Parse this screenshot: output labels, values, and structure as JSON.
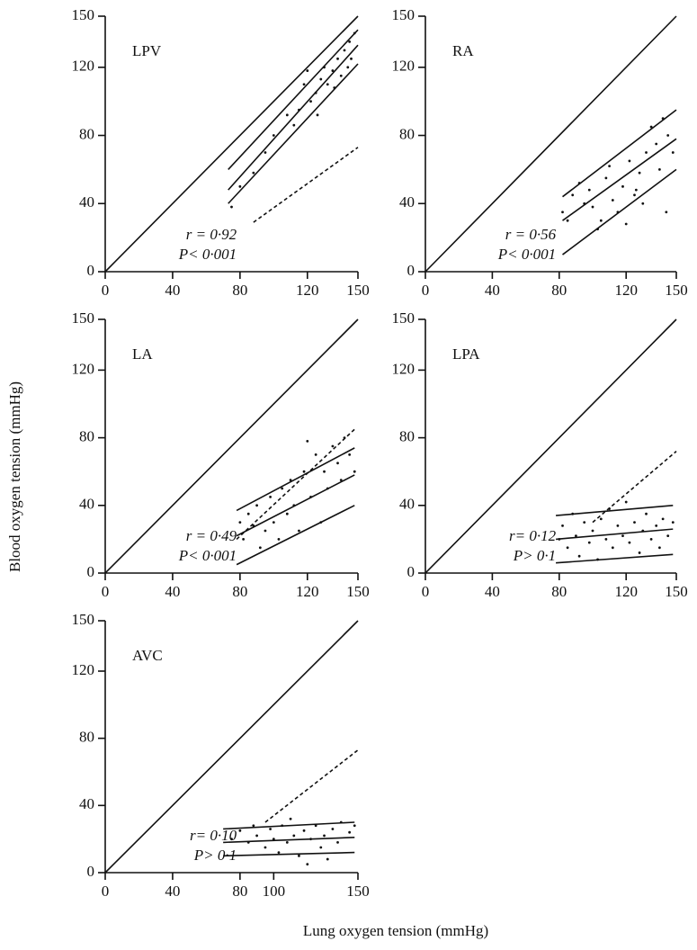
{
  "x_label": "Lung oxygen tension (mmHg)",
  "y_label": "Blood oxygen tension (mmHg)",
  "chart_data": [
    {
      "type": "scatter",
      "label": "LPV",
      "annotations": [
        "r = 0·92",
        "P< 0·001"
      ],
      "color": "#111",
      "xlim": [
        0,
        150
      ],
      "ylim": [
        0,
        150
      ],
      "xticks": [
        0,
        40,
        80,
        120,
        150
      ],
      "yticks": [
        0,
        40,
        80,
        120,
        150
      ],
      "x": [
        75,
        80,
        88,
        95,
        100,
        108,
        112,
        115,
        118,
        120,
        122,
        125,
        128,
        130,
        132,
        135,
        138,
        140,
        142,
        144,
        145,
        146,
        148,
        136,
        126
      ],
      "y": [
        38,
        50,
        58,
        70,
        80,
        92,
        86,
        95,
        110,
        118,
        100,
        105,
        113,
        120,
        110,
        118,
        125,
        115,
        130,
        120,
        135,
        125,
        140,
        108,
        92
      ],
      "lines": [
        {
          "style": "solid",
          "x": [
            0,
            150
          ],
          "y": [
            0,
            150
          ]
        },
        {
          "style": "solid",
          "x": [
            73,
            150
          ],
          "y": [
            60,
            142
          ]
        },
        {
          "style": "solid",
          "x": [
            73,
            150
          ],
          "y": [
            48,
            133
          ]
        },
        {
          "style": "solid",
          "x": [
            73,
            150
          ],
          "y": [
            40,
            122
          ]
        },
        {
          "style": "dashed",
          "x": [
            88,
            150
          ],
          "y": [
            29,
            73
          ]
        }
      ]
    },
    {
      "type": "scatter",
      "label": "RA",
      "annotations": [
        "r = 0·56",
        "P< 0·001"
      ],
      "color": "#111",
      "xlim": [
        0,
        150
      ],
      "ylim": [
        0,
        150
      ],
      "xticks": [
        0,
        40,
        80,
        120,
        150
      ],
      "yticks": [
        0,
        40,
        80,
        120,
        150
      ],
      "x": [
        82,
        85,
        88,
        92,
        95,
        98,
        100,
        103,
        105,
        108,
        110,
        112,
        115,
        118,
        120,
        122,
        125,
        128,
        130,
        132,
        135,
        138,
        140,
        142,
        145,
        148,
        144,
        126
      ],
      "y": [
        35,
        30,
        45,
        52,
        40,
        48,
        38,
        25,
        30,
        55,
        62,
        42,
        35,
        50,
        28,
        65,
        45,
        58,
        40,
        70,
        85,
        75,
        60,
        90,
        80,
        70,
        35,
        48
      ],
      "lines": [
        {
          "style": "solid",
          "x": [
            0,
            150
          ],
          "y": [
            0,
            150
          ]
        },
        {
          "style": "solid",
          "x": [
            82,
            150
          ],
          "y": [
            44,
            95
          ]
        },
        {
          "style": "solid",
          "x": [
            82,
            150
          ],
          "y": [
            30,
            78
          ]
        },
        {
          "style": "solid",
          "x": [
            82,
            150
          ],
          "y": [
            10,
            60
          ]
        }
      ]
    },
    {
      "type": "scatter",
      "label": "LA",
      "annotations": [
        "r = 0·49",
        "P< 0·001"
      ],
      "color": "#111",
      "xlim": [
        0,
        150
      ],
      "ylim": [
        0,
        150
      ],
      "xticks": [
        0,
        40,
        80,
        120,
        150
      ],
      "yticks": [
        0,
        40,
        80,
        120,
        150
      ],
      "x": [
        80,
        82,
        85,
        88,
        90,
        92,
        95,
        98,
        100,
        103,
        105,
        108,
        110,
        112,
        115,
        118,
        120,
        122,
        125,
        128,
        130,
        132,
        135,
        138,
        140,
        142,
        145,
        148
      ],
      "y": [
        30,
        20,
        35,
        28,
        40,
        15,
        25,
        45,
        30,
        20,
        50,
        35,
        55,
        40,
        25,
        60,
        78,
        45,
        70,
        30,
        60,
        50,
        75,
        65,
        55,
        80,
        70,
        60
      ],
      "lines": [
        {
          "style": "solid",
          "x": [
            0,
            150
          ],
          "y": [
            0,
            150
          ]
        },
        {
          "style": "solid",
          "x": [
            78,
            148
          ],
          "y": [
            37,
            74
          ]
        },
        {
          "style": "solid",
          "x": [
            78,
            148
          ],
          "y": [
            22,
            58
          ]
        },
        {
          "style": "solid",
          "x": [
            78,
            148
          ],
          "y": [
            5,
            40
          ]
        },
        {
          "style": "dashed",
          "x": [
            78,
            148
          ],
          "y": [
            20,
            85
          ]
        }
      ]
    },
    {
      "type": "scatter",
      "label": "LPA",
      "annotations": [
        "r= 0·12",
        "P> 0·1"
      ],
      "color": "#111",
      "xlim": [
        0,
        150
      ],
      "ylim": [
        0,
        150
      ],
      "xticks": [
        0,
        40,
        80,
        120,
        150
      ],
      "yticks": [
        0,
        40,
        80,
        120,
        150
      ],
      "x": [
        80,
        82,
        85,
        88,
        90,
        92,
        95,
        98,
        100,
        103,
        105,
        108,
        110,
        112,
        115,
        118,
        120,
        122,
        125,
        128,
        130,
        132,
        135,
        138,
        140,
        142,
        145,
        148
      ],
      "y": [
        20,
        28,
        15,
        35,
        22,
        10,
        30,
        18,
        25,
        8,
        32,
        20,
        38,
        15,
        28,
        22,
        42,
        18,
        30,
        12,
        25,
        35,
        20,
        28,
        15,
        32,
        22,
        30
      ],
      "lines": [
        {
          "style": "solid",
          "x": [
            0,
            150
          ],
          "y": [
            0,
            150
          ]
        },
        {
          "style": "solid",
          "x": [
            78,
            148
          ],
          "y": [
            34,
            40
          ]
        },
        {
          "style": "solid",
          "x": [
            78,
            148
          ],
          "y": [
            20,
            26
          ]
        },
        {
          "style": "solid",
          "x": [
            78,
            148
          ],
          "y": [
            6,
            11
          ]
        },
        {
          "style": "dashed",
          "x": [
            100,
            150
          ],
          "y": [
            30,
            72
          ]
        }
      ]
    },
    {
      "type": "scatter",
      "label": "AVC",
      "annotations": [
        "r= 0·10",
        "P> 0·1"
      ],
      "color": "#111",
      "xlim": [
        0,
        150
      ],
      "ylim": [
        0,
        150
      ],
      "xticks": [
        0,
        40,
        80,
        100,
        150
      ],
      "yticks": [
        0,
        40,
        80,
        120,
        150
      ],
      "x": [
        75,
        80,
        85,
        88,
        90,
        95,
        98,
        100,
        103,
        105,
        108,
        110,
        112,
        115,
        118,
        120,
        122,
        125,
        128,
        130,
        132,
        135,
        138,
        140,
        145,
        148
      ],
      "y": [
        20,
        25,
        18,
        28,
        22,
        15,
        26,
        20,
        12,
        28,
        18,
        32,
        22,
        10,
        25,
        5,
        20,
        28,
        15,
        22,
        8,
        26,
        18,
        30,
        24,
        28
      ],
      "lines": [
        {
          "style": "solid",
          "x": [
            0,
            150
          ],
          "y": [
            0,
            150
          ]
        },
        {
          "style": "solid",
          "x": [
            70,
            148
          ],
          "y": [
            26,
            30
          ]
        },
        {
          "style": "solid",
          "x": [
            70,
            148
          ],
          "y": [
            18,
            21
          ]
        },
        {
          "style": "solid",
          "x": [
            70,
            148
          ],
          "y": [
            10,
            12
          ]
        },
        {
          "style": "dashed",
          "x": [
            95,
            150
          ],
          "y": [
            30,
            73
          ]
        }
      ]
    }
  ]
}
